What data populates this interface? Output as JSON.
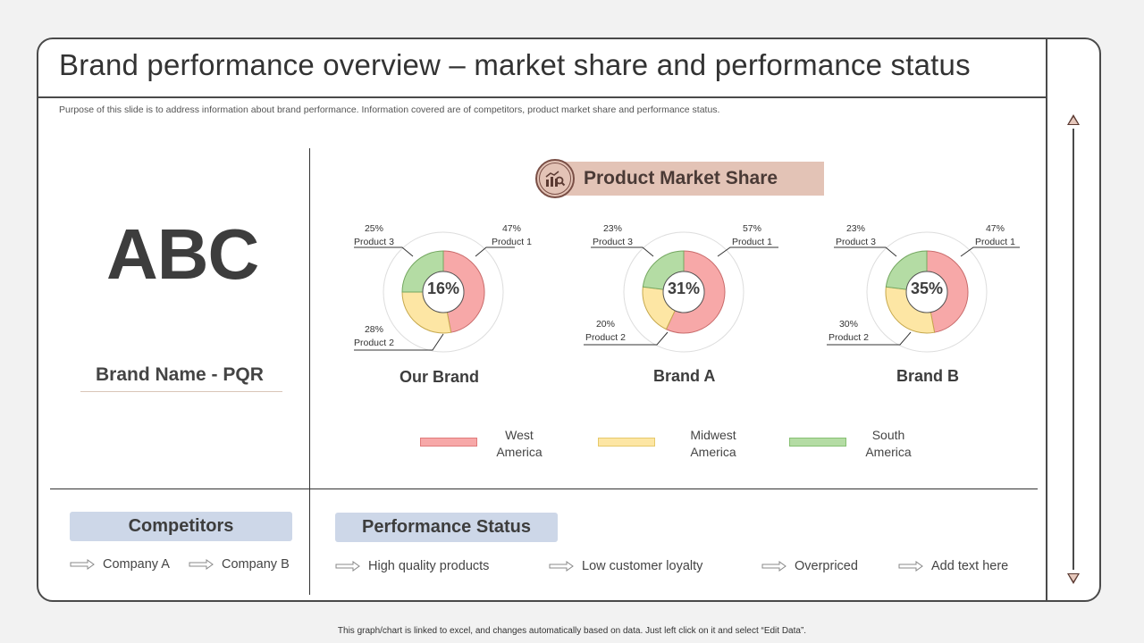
{
  "title": "Brand performance overview – market share and performance status",
  "subtitle": "Purpose of this slide is to address information about brand performance. Information covered are of competitors, product market share and performance status.",
  "logo_text": "ABC",
  "brand_name": "Brand Name - PQR",
  "section_title": "Product Market Share",
  "colors": {
    "west": "#f7a8a8",
    "midwest": "#fde6a4",
    "south": "#b4dca4",
    "accent": "#e3c3b6",
    "pill": "#cdd7e8"
  },
  "charts": [
    {
      "name": "Our Brand",
      "center": "16%",
      "product1": {
        "pct": "47%",
        "label": "Product 1"
      },
      "product2": {
        "pct": "28%",
        "label": "Product 2"
      },
      "product3": {
        "pct": "25%",
        "label": "Product 3"
      }
    },
    {
      "name": "Brand A",
      "center": "31%",
      "product1": {
        "pct": "57%",
        "label": "Product 1"
      },
      "product2": {
        "pct": "20%",
        "label": "Product 2"
      },
      "product3": {
        "pct": "23%",
        "label": "Product 3"
      }
    },
    {
      "name": "Brand B",
      "center": "35%",
      "product1": {
        "pct": "47%",
        "label": "Product 1"
      },
      "product2": {
        "pct": "30%",
        "label": "Product 2"
      },
      "product3": {
        "pct": "23%",
        "label": "Product 3"
      }
    }
  ],
  "legend": {
    "west_line1": "West",
    "west_line2": "America",
    "midwest_line1": "Midwest",
    "midwest_line2": "America",
    "south_line1": "South",
    "south_line2": "America"
  },
  "competitors": {
    "title": "Competitors",
    "items": [
      "Company A",
      "Company B"
    ]
  },
  "performance": {
    "title": "Performance Status",
    "items": [
      "High quality products",
      "Low customer loyalty",
      "Overpriced",
      "Add text here"
    ]
  },
  "footer": "This graph/chart is linked to excel, and changes automatically based on data. Just left click on it and select “Edit Data”."
}
